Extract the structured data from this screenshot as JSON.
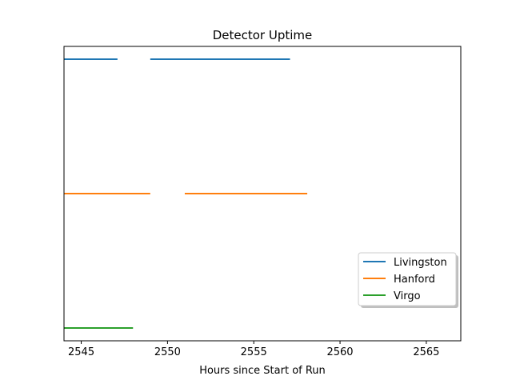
{
  "chart_data": {
    "type": "line",
    "title": "Detector Uptime",
    "xlabel": "Hours since Start of Run",
    "ylabel": "",
    "xlim": [
      2544,
      2567
    ],
    "xticks": [
      2545,
      2550,
      2555,
      2560,
      2565
    ],
    "xtick_labels": [
      "2545",
      "2550",
      "2555",
      "2560",
      "2565"
    ],
    "yticks_visible": false,
    "grid": false,
    "legend_position": "lower-right",
    "series": [
      {
        "name": "Livingston",
        "color": "#1f77b4",
        "level": 3,
        "segments": [
          [
            2544,
            2547.1
          ],
          [
            2549,
            2557.1
          ]
        ]
      },
      {
        "name": "Hanford",
        "color": "#ff7f0e",
        "level": 2,
        "segments": [
          [
            2544,
            2549
          ],
          [
            2551,
            2558.1
          ]
        ]
      },
      {
        "name": "Virgo",
        "color": "#2ca02c",
        "level": 1,
        "segments": [
          [
            2544,
            2548
          ]
        ]
      }
    ]
  }
}
